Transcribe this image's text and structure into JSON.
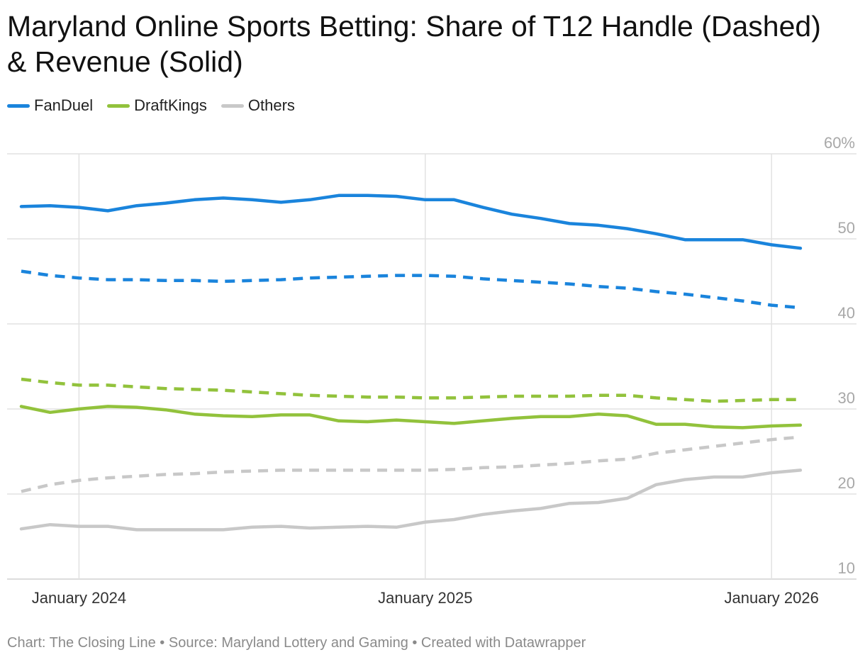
{
  "title": "Maryland Online Sports Betting: Share of T12 Handle (Dashed) & Revenue (Solid)",
  "footer": "Chart: The Closing Line • Source: Maryland Lottery and Gaming • Created with Datawrapper",
  "legend": [
    {
      "name": "FanDuel",
      "color": "#1a84dc"
    },
    {
      "name": "DraftKings",
      "color": "#92c23c"
    },
    {
      "name": "Others",
      "color": "#c8c8c8"
    }
  ],
  "chart_data": {
    "type": "line",
    "title": "Maryland Online Sports Betting: Share of T12 Handle (Dashed) & Revenue (Solid)",
    "x_start": "2023-11",
    "x": [
      "2023-11",
      "2023-12",
      "2024-01",
      "2024-02",
      "2024-03",
      "2024-04",
      "2024-05",
      "2024-06",
      "2024-07",
      "2024-08",
      "2024-09",
      "2024-10",
      "2024-11",
      "2024-12",
      "2025-01",
      "2025-02",
      "2025-03",
      "2025-04",
      "2025-05",
      "2025-06",
      "2025-07",
      "2025-08",
      "2025-09",
      "2025-10",
      "2025-11",
      "2025-12",
      "2026-01",
      "2026-02"
    ],
    "x_ticks": [
      "January 2024",
      "January 2025",
      "January 2026"
    ],
    "x_tick_dates": [
      "2024-01",
      "2025-01",
      "2026-01"
    ],
    "y_ticks": [
      "60%",
      "50",
      "40",
      "30",
      "20",
      "10"
    ],
    "y_tick_values": [
      60,
      50,
      40,
      30,
      20,
      10
    ],
    "ylim": [
      10,
      60
    ],
    "grid": true,
    "legend_position": "top-left",
    "series": [
      {
        "name": "FanDuel",
        "style": "solid",
        "color": "#1a84dc",
        "values": [
          53.8,
          53.9,
          53.7,
          53.3,
          53.9,
          54.2,
          54.6,
          54.8,
          54.6,
          54.3,
          54.6,
          55.1,
          55.1,
          55.0,
          54.6,
          54.6,
          53.7,
          52.9,
          52.4,
          51.8,
          51.6,
          51.2,
          50.6,
          49.9,
          49.9,
          49.9,
          49.3,
          48.9
        ]
      },
      {
        "name": "FanDuel",
        "style": "dashed",
        "color": "#1a84dc",
        "values": [
          46.2,
          45.7,
          45.4,
          45.2,
          45.2,
          45.1,
          45.1,
          45.0,
          45.1,
          45.2,
          45.4,
          45.5,
          45.6,
          45.7,
          45.7,
          45.6,
          45.3,
          45.1,
          44.9,
          44.7,
          44.4,
          44.2,
          43.8,
          43.5,
          43.1,
          42.7,
          42.2,
          41.9
        ]
      },
      {
        "name": "DraftKings",
        "style": "solid",
        "color": "#92c23c",
        "values": [
          30.3,
          29.6,
          30.0,
          30.3,
          30.2,
          29.9,
          29.4,
          29.2,
          29.1,
          29.3,
          29.3,
          28.6,
          28.5,
          28.7,
          28.5,
          28.3,
          28.6,
          28.9,
          29.1,
          29.1,
          29.4,
          29.2,
          28.2,
          28.2,
          27.9,
          27.8,
          28.0,
          28.1
        ]
      },
      {
        "name": "DraftKings",
        "style": "dashed",
        "color": "#92c23c",
        "values": [
          33.5,
          33.1,
          32.8,
          32.8,
          32.6,
          32.4,
          32.3,
          32.2,
          32.0,
          31.8,
          31.6,
          31.5,
          31.4,
          31.4,
          31.3,
          31.3,
          31.4,
          31.5,
          31.5,
          31.5,
          31.6,
          31.6,
          31.3,
          31.1,
          30.9,
          31.0,
          31.1,
          31.1
        ]
      },
      {
        "name": "Others",
        "style": "solid",
        "color": "#c8c8c8",
        "values": [
          15.9,
          16.4,
          16.2,
          16.2,
          15.8,
          15.8,
          15.8,
          15.8,
          16.1,
          16.2,
          16.0,
          16.1,
          16.2,
          16.1,
          16.7,
          17.0,
          17.6,
          18.0,
          18.3,
          18.9,
          19.0,
          19.5,
          21.1,
          21.7,
          22.0,
          22.0,
          22.5,
          22.8
        ]
      },
      {
        "name": "Others",
        "style": "dashed",
        "color": "#c8c8c8",
        "values": [
          20.3,
          21.1,
          21.6,
          21.9,
          22.1,
          22.3,
          22.4,
          22.6,
          22.7,
          22.8,
          22.8,
          22.8,
          22.8,
          22.8,
          22.8,
          22.9,
          23.1,
          23.2,
          23.4,
          23.6,
          23.9,
          24.1,
          24.8,
          25.2,
          25.6,
          26.0,
          26.4,
          26.7
        ]
      }
    ]
  }
}
